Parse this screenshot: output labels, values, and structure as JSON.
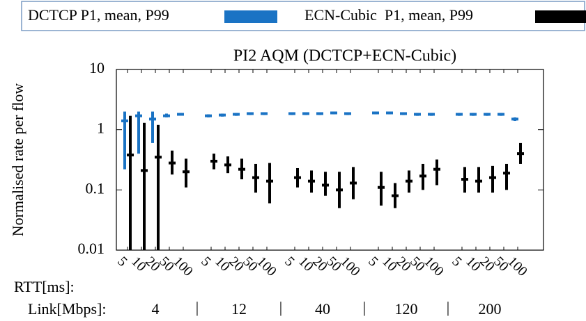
{
  "chart_data": {
    "type": "errorbar",
    "title": "PI2 AQM (DCTCP+ECN-Cubic)",
    "y_label": "Normalised rate per flow",
    "x_row_label": "RTT[ms]:",
    "group_row_label": "Link[Mbps]:",
    "groups": [
      "4",
      "12",
      "40",
      "120",
      "200"
    ],
    "group_separator": "|",
    "log_y": true,
    "ylim": [
      0.01,
      10
    ],
    "yticks": [
      0.01,
      0.1,
      1,
      10
    ],
    "categories": [
      "5",
      "10",
      "20",
      "50",
      "100",
      null,
      "5",
      "10",
      "20",
      "50",
      "100",
      null,
      "5",
      "10",
      "20",
      "50",
      "100",
      null,
      "5",
      "10",
      "20",
      "50",
      "100",
      null,
      "5",
      "10",
      "20",
      "50",
      "100"
    ],
    "series": [
      {
        "name": "DCTCP P1, mean, P99",
        "color": "#1a73c4",
        "values": [
          1.4,
          1.7,
          1.5,
          1.7,
          1.8,
          null,
          1.7,
          1.75,
          1.8,
          1.85,
          1.85,
          null,
          1.85,
          1.85,
          1.85,
          1.9,
          1.85,
          null,
          1.9,
          1.9,
          1.85,
          1.8,
          1.8,
          null,
          1.8,
          1.8,
          1.8,
          1.8,
          1.5
        ],
        "p1": [
          0.22,
          0.4,
          0.6,
          1.6,
          1.75,
          null,
          1.6,
          1.65,
          1.7,
          1.75,
          1.75,
          null,
          1.75,
          1.75,
          1.75,
          1.8,
          1.75,
          null,
          1.8,
          1.8,
          1.75,
          1.7,
          1.7,
          null,
          1.7,
          1.7,
          1.7,
          1.7,
          1.4
        ],
        "p99": [
          2.0,
          2.0,
          2.0,
          1.85,
          1.9,
          null,
          1.8,
          1.85,
          1.9,
          1.95,
          1.95,
          null,
          1.95,
          1.95,
          1.95,
          2.0,
          1.95,
          null,
          2.0,
          2.0,
          1.95,
          1.9,
          1.9,
          null,
          1.9,
          1.9,
          1.9,
          1.9,
          1.6
        ]
      },
      {
        "name": "ECN-Cubic  P1, mean, P99",
        "color": "#000000",
        "values": [
          0.38,
          0.21,
          0.35,
          0.28,
          0.2,
          null,
          0.3,
          0.26,
          0.22,
          0.16,
          0.14,
          null,
          0.16,
          0.14,
          0.12,
          0.1,
          0.13,
          null,
          0.11,
          0.08,
          0.14,
          0.17,
          0.22,
          null,
          0.15,
          0.14,
          0.16,
          0.19,
          0.4
        ],
        "p1": [
          0.01,
          0.01,
          0.01,
          0.18,
          0.11,
          null,
          0.22,
          0.19,
          0.15,
          0.09,
          0.06,
          null,
          0.11,
          0.09,
          0.08,
          0.05,
          0.07,
          null,
          0.055,
          0.05,
          0.09,
          0.1,
          0.12,
          null,
          0.09,
          0.09,
          0.09,
          0.1,
          0.27
        ],
        "p99": [
          1.7,
          1.3,
          1.2,
          0.45,
          0.33,
          null,
          0.4,
          0.36,
          0.33,
          0.27,
          0.28,
          null,
          0.23,
          0.21,
          0.2,
          0.2,
          0.24,
          null,
          0.2,
          0.13,
          0.21,
          0.27,
          0.32,
          null,
          0.24,
          0.24,
          0.25,
          0.27,
          0.6
        ]
      }
    ]
  }
}
